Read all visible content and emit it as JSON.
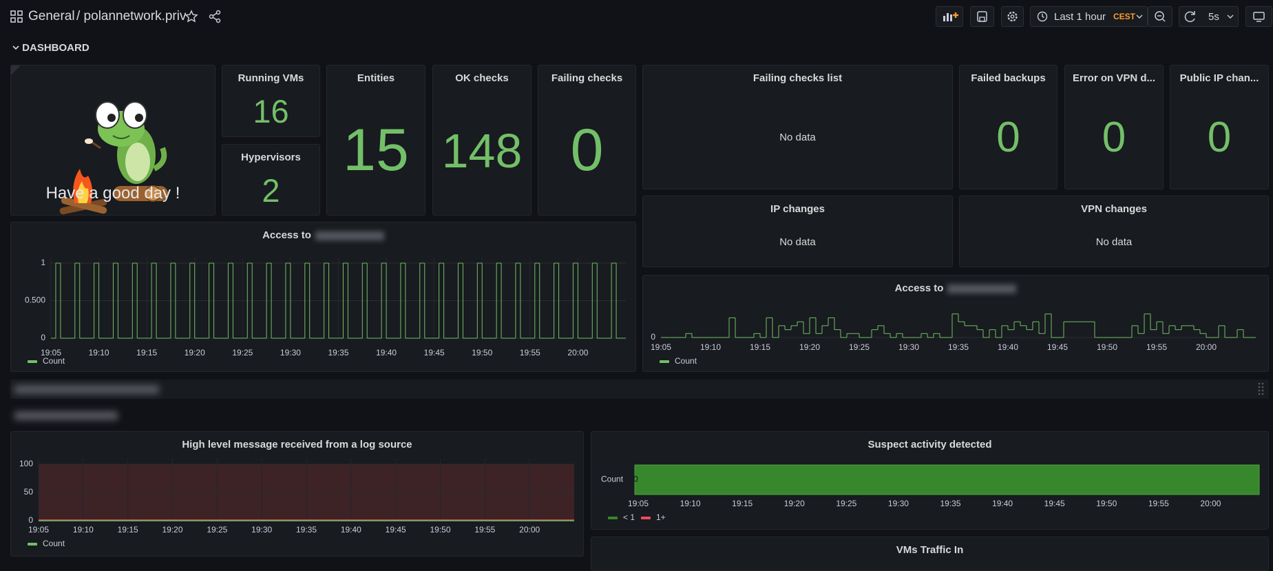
{
  "header": {
    "section": "General",
    "title": "/ polannetwork.priv",
    "time_range": "Last 1 hour",
    "timezone": "CEST",
    "refresh": "5s"
  },
  "row": "DASHBOARD",
  "welcome": "Have a good day !",
  "stats": [
    {
      "title": "Running VMs",
      "value": 16
    },
    {
      "title": "Hypervisors",
      "value": 2
    },
    {
      "title": "Entities",
      "value": 15
    },
    {
      "title": "OK checks",
      "value": 148
    },
    {
      "title": "Failing checks",
      "value": 0
    },
    {
      "title": "Failed backups",
      "value": 0
    },
    {
      "title": "Error on VPN d...",
      "value": 0
    },
    {
      "title": "Public IP chan...",
      "value": 0
    }
  ],
  "empty_panels": [
    {
      "title": "Failing checks list",
      "message": "No data"
    },
    {
      "title": "IP changes",
      "message": "No data"
    },
    {
      "title": "VPN changes",
      "message": "No data"
    }
  ],
  "access_charts": [
    {
      "title": "Access to",
      "series": "Count",
      "color": "#73bf69",
      "ylim": [
        0,
        1
      ],
      "yticks": [
        0,
        {
          "value": 0.5,
          "label": "0.500"
        },
        1
      ],
      "xticks": [
        "19:05",
        "19:10",
        "19:15",
        "19:20",
        "19:25",
        "19:30",
        "19:35",
        "19:40",
        "19:45",
        "19:50",
        "19:55",
        "20:00"
      ],
      "values": [
        0,
        1,
        0,
        0,
        0,
        1,
        0,
        0,
        0,
        1,
        0,
        0,
        0,
        1,
        0,
        0,
        0,
        1,
        0,
        0,
        0,
        1,
        0,
        0,
        0,
        1,
        0,
        0,
        0,
        1,
        0,
        0,
        0,
        1,
        0,
        0,
        0,
        1,
        0,
        0,
        0,
        1,
        0,
        0,
        0,
        1,
        0,
        0,
        0,
        1,
        0,
        0,
        0,
        1,
        0,
        0,
        0,
        1,
        0,
        0,
        0,
        1,
        0,
        0,
        0,
        1,
        0,
        0,
        0,
        1,
        0,
        0,
        0,
        1,
        0,
        0,
        0,
        1,
        0,
        0,
        0,
        1,
        0,
        0,
        0,
        1,
        0,
        0,
        0,
        1,
        0,
        0,
        0,
        1,
        0,
        0,
        0,
        1,
        0,
        0,
        0,
        1,
        0,
        0,
        0,
        1,
        0,
        0,
        0,
        1,
        0,
        0,
        0,
        1,
        0,
        0,
        0,
        1,
        0,
        0
      ]
    },
    {
      "title": "Access to",
      "series": "Count",
      "color": "#73bf69",
      "ylim": [
        0,
        7
      ],
      "yticks": [
        0
      ],
      "xticks": [
        "19:05",
        "19:10",
        "19:15",
        "19:20",
        "19:25",
        "19:30",
        "19:35",
        "19:40",
        "19:45",
        "19:50",
        "19:55",
        "20:00"
      ],
      "values": [
        0,
        0,
        0,
        0,
        1,
        0,
        0,
        0,
        0,
        0,
        0,
        5,
        0,
        0,
        0,
        1,
        0,
        5,
        0,
        3,
        2,
        3,
        4,
        1,
        5,
        1,
        3,
        5,
        2,
        0,
        1,
        1,
        0,
        0,
        2,
        3,
        1,
        0,
        1,
        0,
        0,
        0,
        1,
        0,
        1,
        0,
        0,
        6,
        4,
        3,
        3,
        2,
        0,
        2,
        0,
        3,
        2,
        4,
        3,
        2,
        4,
        1,
        6,
        0,
        0,
        4,
        4,
        4,
        4,
        4,
        0,
        0,
        0,
        0,
        0,
        0,
        3,
        1,
        6,
        2,
        4,
        1,
        3,
        2,
        3,
        3,
        2,
        1,
        0,
        0,
        3,
        0,
        0,
        2,
        0,
        0
      ]
    }
  ],
  "log_chart": {
    "title": "High level message received from a log source",
    "series": "Count",
    "color": "#73bf69",
    "ylim": [
      0,
      100
    ],
    "yticks": [
      0,
      50,
      100
    ],
    "xticks": [
      "19:05",
      "19:10",
      "19:15",
      "19:20",
      "19:25",
      "19:30",
      "19:35",
      "19:40",
      "19:45",
      "19:50",
      "19:55",
      "20:00"
    ],
    "values": [
      0,
      0,
      0,
      0,
      0,
      0,
      0,
      0,
      0,
      0,
      0,
      0,
      0
    ]
  },
  "suspect": {
    "title": "Suspect activity detected",
    "row": "Count",
    "values": [
      0
    ],
    "xticks": [
      "19:05",
      "19:10",
      "19:15",
      "19:20",
      "19:25",
      "19:30",
      "19:35",
      "19:40",
      "19:45",
      "19:50",
      "19:55",
      "20:00"
    ],
    "legend": [
      {
        "name": "< 1",
        "color": "#37872d"
      },
      {
        "name": "1+",
        "color": "#f2495c"
      }
    ]
  },
  "traffic": {
    "title": "VMs Traffic In"
  }
}
